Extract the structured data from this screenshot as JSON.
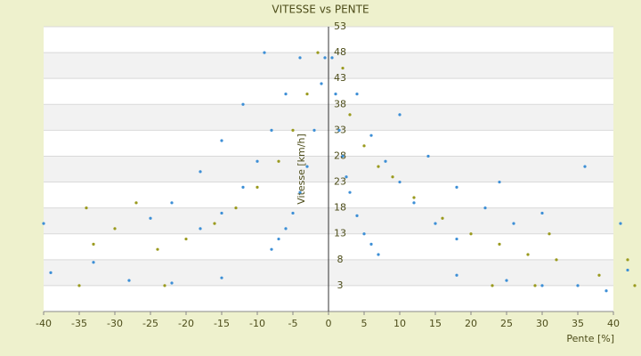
{
  "chart_data": {
    "type": "scatter",
    "title": "VITESSE vs PENTE",
    "x_label": "Pente [%]",
    "y_label": "Vitesse [km/h]",
    "xlim": [
      -40,
      40
    ],
    "xticks": [
      -40,
      -35,
      -30,
      -25,
      -20,
      -15,
      -10,
      -5,
      0,
      5,
      10,
      15,
      20,
      25,
      30,
      35,
      40
    ],
    "ylim": [
      -2,
      53
    ],
    "yticks": [
      3,
      8,
      13,
      18,
      23,
      28,
      33,
      38,
      43,
      48,
      53
    ],
    "grid": true,
    "series": [
      {
        "color": "#3d8fd6",
        "x": [
          0.5,
          1,
          1.5,
          2,
          2.5,
          3,
          4,
          5,
          6,
          7,
          -0.5,
          -1,
          -2,
          -3,
          -4,
          -5,
          -6,
          -7,
          -8,
          4,
          6,
          8,
          10,
          12,
          15,
          18,
          -4,
          -6,
          -8,
          -10,
          -12,
          -15,
          -18,
          -9,
          -12,
          -15,
          -18,
          -22,
          -25,
          10,
          14,
          18,
          22,
          26,
          -40,
          -39,
          -33,
          -28,
          -22,
          -15,
          18,
          25,
          30,
          35,
          39,
          42,
          36,
          41,
          30,
          24
        ],
        "y": [
          47,
          40,
          33,
          28,
          24,
          21,
          16.5,
          13,
          11,
          9,
          47,
          42,
          33,
          26,
          21,
          17,
          14,
          12,
          10,
          40,
          32,
          27,
          23,
          19,
          15,
          12,
          47,
          40,
          33,
          27,
          22,
          17,
          14,
          48,
          38,
          31,
          25,
          19,
          16,
          36,
          28,
          22,
          18,
          15,
          15,
          5.5,
          7.5,
          4,
          3.5,
          4.5,
          5,
          4,
          3,
          3,
          2,
          6,
          26,
          15,
          17,
          23
        ]
      },
      {
        "color": "#9a9a1e",
        "x": [
          -1.5,
          -3,
          -5,
          -7,
          -10,
          -13,
          -16,
          -20,
          -24,
          -27,
          -30,
          -34,
          -35,
          -33,
          2,
          3,
          5,
          7,
          9,
          12,
          16,
          20,
          24,
          28,
          32,
          38,
          42,
          43,
          -23,
          23,
          31,
          29
        ],
        "y": [
          48,
          40,
          33,
          27,
          22,
          18,
          15,
          12,
          10,
          19,
          14,
          18,
          3,
          11,
          45,
          36,
          30,
          26,
          24,
          20,
          16,
          13,
          11,
          9,
          8,
          5,
          8,
          3,
          3,
          3,
          13,
          3
        ]
      }
    ]
  }
}
